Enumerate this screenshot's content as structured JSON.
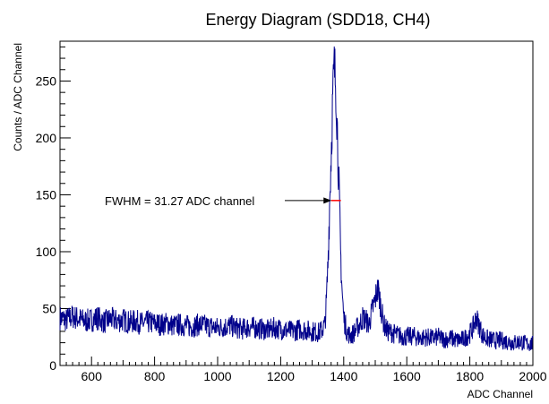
{
  "chart_data": {
    "type": "line",
    "title": "Energy Diagram (SDD18, CH4)",
    "xlabel": "ADC Channel",
    "ylabel": "Counts / ADC Channel",
    "xlim": [
      500,
      2000
    ],
    "ylim": [
      0,
      285
    ],
    "xticks": [
      600,
      800,
      1000,
      1200,
      1400,
      1600,
      1800,
      2000
    ],
    "yticks": [
      0,
      50,
      100,
      150,
      200,
      250
    ],
    "grid": false,
    "series": [
      {
        "color": "#00008b",
        "x": [
          500,
          520,
          540,
          560,
          580,
          600,
          620,
          640,
          660,
          680,
          700,
          720,
          740,
          760,
          780,
          800,
          820,
          840,
          860,
          880,
          900,
          920,
          940,
          960,
          980,
          1000,
          1020,
          1040,
          1060,
          1080,
          1100,
          1120,
          1140,
          1160,
          1180,
          1200,
          1220,
          1240,
          1260,
          1280,
          1300,
          1320,
          1330,
          1340,
          1345,
          1350,
          1355,
          1360,
          1365,
          1370,
          1375,
          1380,
          1385,
          1390,
          1395,
          1400,
          1410,
          1420,
          1430,
          1440,
          1450,
          1460,
          1470,
          1480,
          1490,
          1500,
          1505,
          1510,
          1515,
          1520,
          1525,
          1530,
          1540,
          1550,
          1560,
          1570,
          1580,
          1600,
          1620,
          1640,
          1660,
          1680,
          1700,
          1720,
          1740,
          1760,
          1780,
          1800,
          1810,
          1820,
          1830,
          1840,
          1850,
          1860,
          1880,
          1900,
          1920,
          1940,
          1960,
          1980,
          2000
        ],
        "y": [
          42,
          40,
          43,
          41,
          39,
          40,
          42,
          38,
          41,
          39,
          40,
          38,
          39,
          37,
          38,
          37,
          36,
          37,
          35,
          36,
          35,
          34,
          36,
          35,
          34,
          33,
          34,
          35,
          33,
          32,
          34,
          33,
          32,
          31,
          33,
          32,
          31,
          30,
          32,
          31,
          30,
          29,
          31,
          36,
          55,
          90,
          140,
          185,
          235,
          262,
          248,
          205,
          155,
          100,
          65,
          42,
          30,
          26,
          28,
          32,
          36,
          42,
          40,
          36,
          48,
          58,
          66,
          65,
          57,
          48,
          40,
          34,
          30,
          29,
          28,
          27,
          26,
          25,
          26,
          24,
          25,
          24,
          25,
          23,
          24,
          22,
          23,
          28,
          33,
          42,
          35,
          27,
          24,
          23,
          22,
          22,
          21,
          20,
          21,
          19,
          19
        ]
      }
    ],
    "annotations": [
      {
        "text": "FWHM = 31.27 ADC channel",
        "arrow_to_x": 1370,
        "arrow_to_y": 145
      }
    ],
    "fwhm_marker": {
      "x_from": 1360,
      "x_to": 1391,
      "y": 145,
      "color": "#ff0000"
    }
  }
}
